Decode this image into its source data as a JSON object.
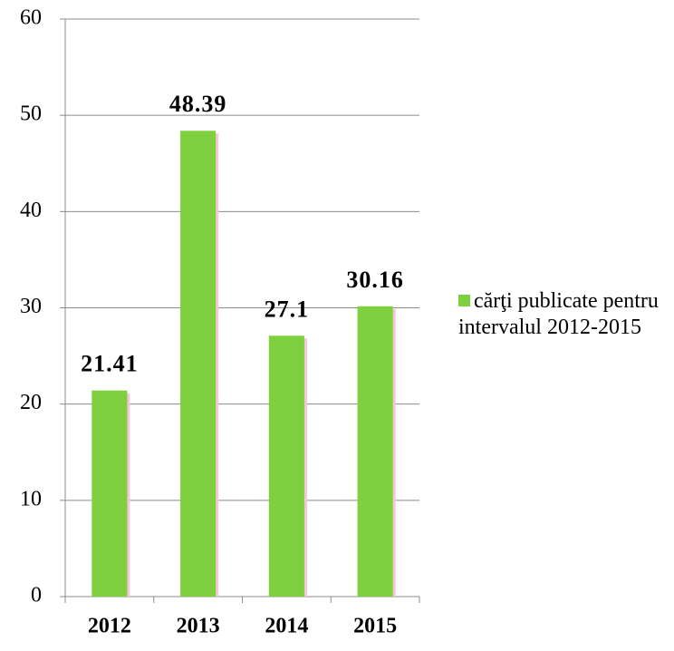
{
  "chart_data": {
    "type": "bar",
    "categories": [
      "2012",
      "2013",
      "2014",
      "2015"
    ],
    "series": [
      {
        "name": "cărţi publicate pentru intervalul 2012-2015",
        "color": "#7ed03f",
        "values": [
          21.41,
          48.39,
          27.1,
          30.16
        ]
      }
    ],
    "ylim": [
      0,
      60
    ],
    "yticks": [
      0,
      10,
      20,
      30,
      40,
      50,
      60
    ],
    "grid": true,
    "legend": "right"
  }
}
